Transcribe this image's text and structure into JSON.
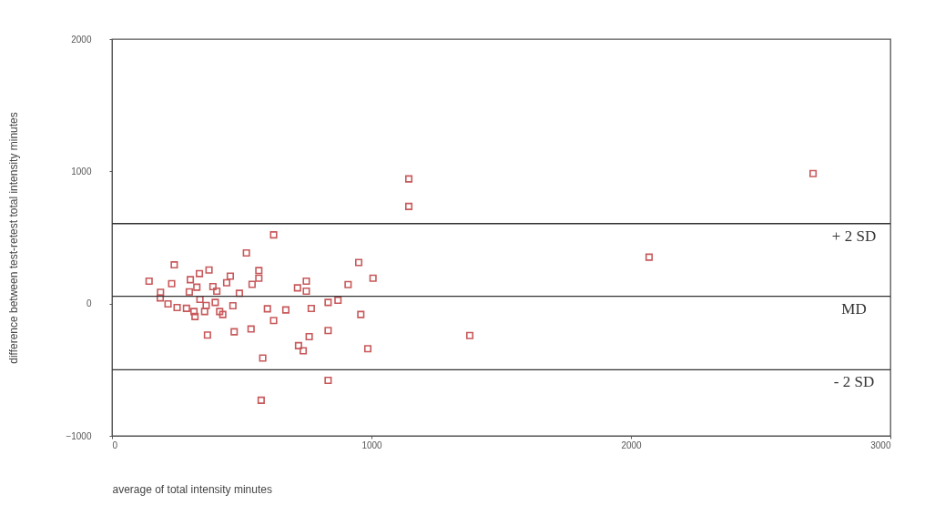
{
  "chart_data": {
    "type": "scatter",
    "xlabel": "average of total intensity minutes",
    "ylabel": "difference between test-retest total intensity minutes",
    "xlim": [
      0,
      3000
    ],
    "xticks": [
      0,
      1000,
      2000,
      3000
    ],
    "ylim": [
      -1000,
      2000
    ],
    "yticks": [
      -1000,
      0,
      1000,
      2000
    ],
    "grid": false,
    "legend": false,
    "marker": "square",
    "series": [
      {
        "color": "#c8585a",
        "x": [
          623,
          518,
          240,
          951,
          1006,
          143,
          230,
          302,
          337,
          374,
          327,
          389,
          442,
          456,
          566,
          566,
          540,
          749,
          749,
          715,
          910,
          298,
          404,
          491,
          187,
          871,
          833,
          466,
          599,
          670,
          768,
          959,
          623,
          368,
          471,
          536,
          760,
          833,
          719,
          737,
          986,
          581,
          833,
          575,
          216,
          251,
          287,
          316,
          320,
          357,
          363,
          415,
          427,
          186,
          339,
          398,
          1144,
          1144,
          2702,
          2070,
          1379
        ],
        "values": [
          520,
          383,
          293,
          311,
          192,
          170,
          151,
          181,
          227,
          254,
          124,
          128,
          158,
          208,
          250,
          192,
          146,
          170,
          94,
          119,
          144,
          89,
          94,
          78,
          85,
          25,
          9,
          -16,
          -39,
          -48,
          -37,
          -82,
          -128,
          -238,
          -213,
          -192,
          -250,
          -204,
          -318,
          -357,
          -341,
          -412,
          -580,
          -731,
          -2,
          -30,
          -36,
          -60,
          -98,
          -60,
          -14,
          -60,
          -82,
          43,
          32,
          9,
          943,
          735,
          983,
          351,
          -241
        ]
      }
    ],
    "ref_lines": [
      {
        "axis": "y",
        "value": 605,
        "label": "+ 2 SD"
      },
      {
        "axis": "y",
        "value": 55,
        "label": "MD"
      },
      {
        "axis": "y",
        "value": -500,
        "label": "- 2 SD"
      }
    ]
  }
}
